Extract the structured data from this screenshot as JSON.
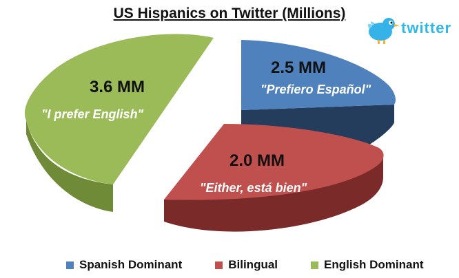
{
  "chart_data": {
    "type": "pie",
    "title": "US Hispanics on Twitter (Millions)",
    "unit": "MM",
    "slices": [
      {
        "name": "Spanish Dominant",
        "value": 2.5,
        "value_label": "2.5 MM",
        "quote": "\"Prefiero Español\"",
        "color": "#4f81bd",
        "side_color": "#253d5c"
      },
      {
        "name": "Bilingual",
        "value": 2.0,
        "value_label": "2.0 MM",
        "quote": "\"Either, está bien\"",
        "color": "#c0504d",
        "side_color": "#7a2b29"
      },
      {
        "name": "English Dominant",
        "value": 3.6,
        "value_label": "3.6 MM",
        "quote": "\"I prefer English\"",
        "color": "#9bbb59",
        "side_color": "#6f8b37"
      }
    ],
    "legend_position": "bottom"
  },
  "logo": {
    "text": "twitter",
    "icon": "twitter-bird-icon",
    "color": "#2fb7e6"
  }
}
